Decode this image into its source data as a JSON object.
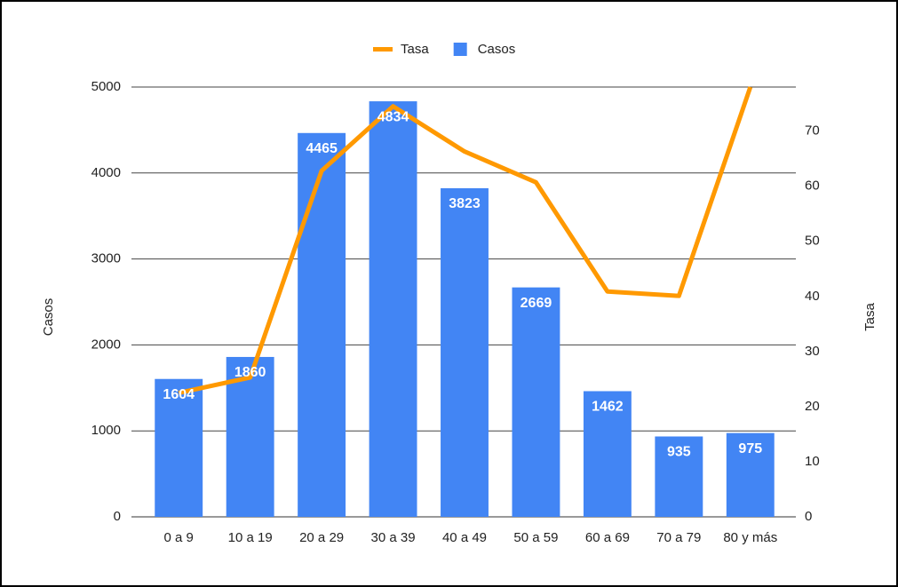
{
  "chart_data": {
    "type": "bar-line",
    "categories": [
      "0 a 9",
      "10 a 19",
      "20 a 29",
      "30 a 39",
      "40 a 49",
      "50 a 59",
      "60 a 69",
      "70 a 79",
      "80 y más"
    ],
    "series": [
      {
        "name": "Casos",
        "type": "bar",
        "color": "#4285f4",
        "values": [
          1604,
          1860,
          4465,
          4834,
          3823,
          2669,
          1462,
          935,
          975
        ]
      },
      {
        "name": "Tasa",
        "type": "line",
        "axis": "y2",
        "color": "#ff9900",
        "values": [
          22.5,
          25.3,
          62.8,
          74.5,
          66.3,
          60.7,
          40.9,
          40.1,
          78
        ]
      }
    ],
    "ylabel": "Casos",
    "y2label": "Tasa",
    "ylim": [
      0,
      5000
    ],
    "yticks": [
      0,
      1000,
      2000,
      3000,
      4000,
      5000
    ],
    "y2lim": [
      0,
      78
    ],
    "y2ticks": [
      0,
      10,
      20,
      30,
      40,
      50,
      60,
      70
    ],
    "grid": true,
    "legend": "top"
  }
}
